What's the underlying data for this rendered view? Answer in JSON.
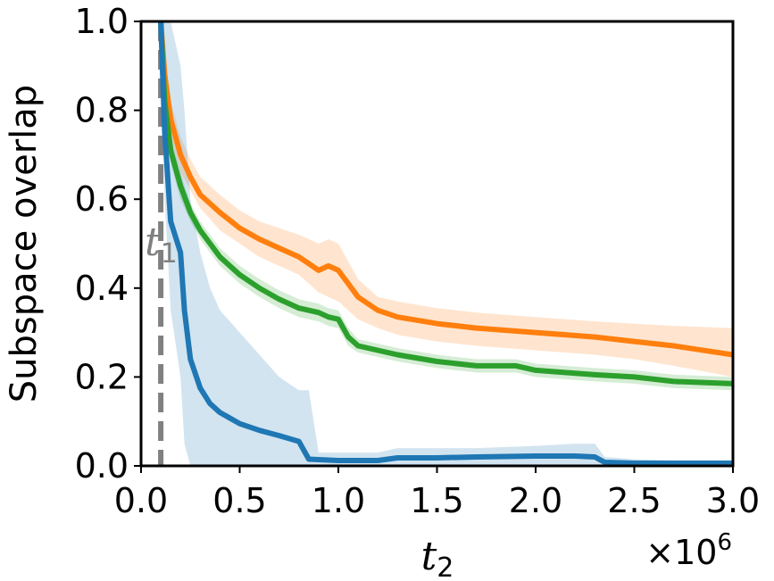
{
  "chart_data": {
    "type": "line",
    "title": "",
    "xlabel": {
      "base": "t",
      "sub": "2"
    },
    "ylabel": "Subspace overlap",
    "x_multiplier": {
      "prefix": "×10",
      "exp": "6"
    },
    "xlim": [
      0,
      3.0
    ],
    "ylim": [
      0,
      1.0
    ],
    "x_ticks": [
      "0.0",
      "0.5",
      "1.0",
      "1.5",
      "2.0",
      "2.5",
      "3.0"
    ],
    "x_tick_values": [
      0,
      0.5,
      1.0,
      1.5,
      2.0,
      2.5,
      3.0
    ],
    "y_ticks": [
      "0.0",
      "0.2",
      "0.4",
      "0.6",
      "0.8",
      "1.0"
    ],
    "y_tick_values": [
      0,
      0.2,
      0.4,
      0.6,
      0.8,
      1.0
    ],
    "grid": false,
    "vline": {
      "x": 0.1,
      "label_base": "t",
      "label_sub": "1",
      "color": "#808080"
    },
    "series": [
      {
        "color": "#ff7f0e",
        "x": [
          0.1,
          0.12,
          0.15,
          0.2,
          0.25,
          0.3,
          0.4,
          0.5,
          0.6,
          0.7,
          0.8,
          0.85,
          0.9,
          0.95,
          1.0,
          1.05,
          1.1,
          1.2,
          1.3,
          1.5,
          1.7,
          2.0,
          2.3,
          2.5,
          2.7,
          3.0
        ],
        "y": [
          1.0,
          0.88,
          0.78,
          0.7,
          0.65,
          0.61,
          0.57,
          0.535,
          0.51,
          0.49,
          0.47,
          0.455,
          0.44,
          0.45,
          0.44,
          0.41,
          0.38,
          0.35,
          0.335,
          0.32,
          0.31,
          0.3,
          0.29,
          0.28,
          0.27,
          0.25
        ],
        "lower": [
          0.96,
          0.84,
          0.74,
          0.66,
          0.62,
          0.58,
          0.53,
          0.5,
          0.47,
          0.45,
          0.43,
          0.41,
          0.39,
          0.38,
          0.37,
          0.35,
          0.33,
          0.31,
          0.295,
          0.28,
          0.27,
          0.26,
          0.25,
          0.24,
          0.225,
          0.2
        ],
        "upper": [
          1.0,
          0.92,
          0.82,
          0.74,
          0.69,
          0.65,
          0.61,
          0.575,
          0.55,
          0.535,
          0.52,
          0.51,
          0.5,
          0.51,
          0.5,
          0.46,
          0.42,
          0.38,
          0.37,
          0.355,
          0.345,
          0.335,
          0.325,
          0.32,
          0.315,
          0.31
        ]
      },
      {
        "color": "#2ca02c",
        "x": [
          0.1,
          0.12,
          0.15,
          0.2,
          0.25,
          0.3,
          0.4,
          0.5,
          0.6,
          0.7,
          0.8,
          0.9,
          0.95,
          1.0,
          1.05,
          1.1,
          1.2,
          1.3,
          1.5,
          1.7,
          1.9,
          2.0,
          2.3,
          2.5,
          2.7,
          3.0
        ],
        "y": [
          1.0,
          0.82,
          0.71,
          0.63,
          0.57,
          0.53,
          0.47,
          0.43,
          0.4,
          0.375,
          0.355,
          0.345,
          0.335,
          0.33,
          0.29,
          0.27,
          0.26,
          0.25,
          0.235,
          0.225,
          0.225,
          0.215,
          0.205,
          0.2,
          0.19,
          0.185
        ],
        "lower": [
          0.96,
          0.79,
          0.68,
          0.6,
          0.55,
          0.51,
          0.45,
          0.41,
          0.38,
          0.355,
          0.335,
          0.325,
          0.315,
          0.31,
          0.27,
          0.255,
          0.245,
          0.235,
          0.22,
          0.21,
          0.21,
          0.2,
          0.19,
          0.185,
          0.175,
          0.17
        ],
        "upper": [
          1.0,
          0.85,
          0.74,
          0.66,
          0.59,
          0.55,
          0.49,
          0.45,
          0.42,
          0.395,
          0.375,
          0.365,
          0.355,
          0.35,
          0.31,
          0.285,
          0.275,
          0.265,
          0.25,
          0.24,
          0.24,
          0.23,
          0.22,
          0.215,
          0.205,
          0.2
        ]
      },
      {
        "color": "#1f77b4",
        "x": [
          0.1,
          0.12,
          0.15,
          0.2,
          0.22,
          0.25,
          0.3,
          0.35,
          0.4,
          0.5,
          0.6,
          0.7,
          0.8,
          0.85,
          0.9,
          1.0,
          1.1,
          1.2,
          1.3,
          1.5,
          1.7,
          2.0,
          2.2,
          2.3,
          2.35,
          2.5,
          2.7,
          3.0
        ],
        "y": [
          1.0,
          0.75,
          0.55,
          0.48,
          0.35,
          0.24,
          0.175,
          0.14,
          0.12,
          0.095,
          0.08,
          0.068,
          0.055,
          0.015,
          0.014,
          0.012,
          0.012,
          0.012,
          0.018,
          0.018,
          0.02,
          0.022,
          0.022,
          0.02,
          0.008,
          0.006,
          0.006,
          0.006
        ],
        "lower": [
          0.95,
          0.6,
          0.35,
          0.2,
          0.05,
          0.0,
          0.0,
          0.0,
          0.0,
          0.0,
          0.0,
          0.0,
          0.0,
          0.0,
          0.0,
          0.0,
          0.0,
          0.0,
          0.0,
          0.0,
          0.0,
          0.0,
          0.0,
          0.0,
          0.0,
          0.0,
          0.0,
          0.0
        ],
        "upper": [
          1.0,
          1.0,
          1.0,
          0.9,
          0.8,
          0.6,
          0.48,
          0.4,
          0.35,
          0.3,
          0.25,
          0.2,
          0.17,
          0.17,
          0.03,
          0.03,
          0.03,
          0.03,
          0.04,
          0.04,
          0.04,
          0.045,
          0.05,
          0.05,
          0.02,
          0.015,
          0.012,
          0.012
        ]
      }
    ]
  }
}
